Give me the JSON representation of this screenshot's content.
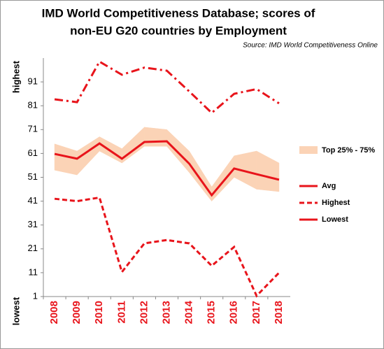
{
  "chart_data": {
    "type": "line",
    "title": "IMD World Competitiveness Database; scores of",
    "subtitle": "non-EU G20 countries by Employment",
    "source": "Source: IMD World Competitiveness Online",
    "y_label_top": "highest",
    "y_label_bottom": "lowest",
    "categories": [
      "2008",
      "2009",
      "2010",
      "2011",
      "2012",
      "2013",
      "2014",
      "2015",
      "2016",
      "2017",
      "2018"
    ],
    "ylim": [
      1,
      101
    ],
    "yticks": [
      1,
      11,
      21,
      31,
      41,
      51,
      61,
      71,
      81,
      91
    ],
    "band": {
      "name": "Top 25% - 75%",
      "color": "#fbd3b6",
      "lower": [
        54,
        52,
        62,
        57,
        64,
        64,
        53,
        41,
        51,
        46,
        45
      ],
      "upper": [
        65,
        62,
        68,
        63,
        72,
        71,
        62,
        47,
        60,
        62,
        57
      ]
    },
    "series": [
      {
        "name": "Avg",
        "color": "#e8141b",
        "style": "solid",
        "values": [
          60.8,
          58.8,
          65.2,
          58.8,
          65.8,
          66.1,
          56.7,
          43.5,
          54.7,
          52.3,
          50
        ]
      },
      {
        "name": "Highest",
        "color": "#e8141b",
        "style": "dashed",
        "values": [
          42,
          41,
          42.5,
          11.3,
          23.3,
          24.7,
          23.3,
          13.9,
          21.8,
          1.3,
          11
        ]
      },
      {
        "name": "Lowest",
        "color": "#e8141b",
        "style": "dashdot",
        "values": [
          83.7,
          82.5,
          99.5,
          94,
          97,
          95.7,
          87,
          78,
          86,
          88,
          82
        ]
      }
    ]
  }
}
